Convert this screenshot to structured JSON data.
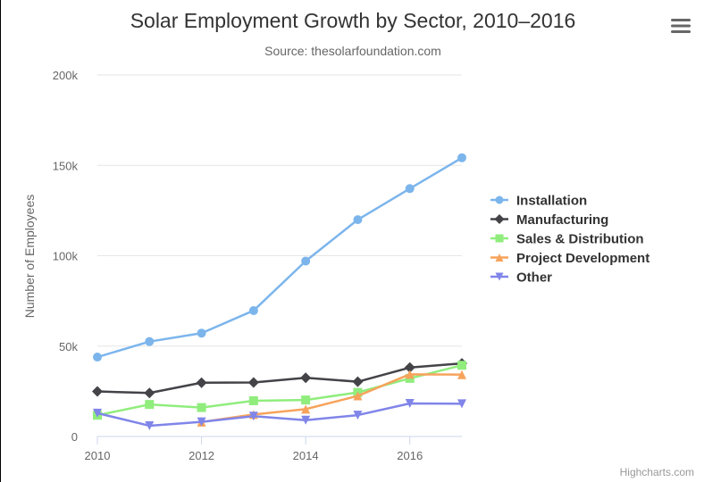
{
  "colors": {
    "background": "#ffffff",
    "grid": "#e6e6e6",
    "axis": "#ccd6eb",
    "text": "#333333",
    "muted": "#666666",
    "credit": "#999999"
  },
  "menu": {
    "icon": "hamburger-menu-icon"
  },
  "credits": {
    "text": "Highcharts.com"
  },
  "chart_data": {
    "type": "line",
    "title": "Solar Employment Growth by Sector, 2010–2016",
    "subtitle": "Source: thesolarfoundation.com",
    "xlabel": "",
    "ylabel": "Number of Employees",
    "x": [
      2010,
      2011,
      2012,
      2013,
      2014,
      2015,
      2016,
      2017
    ],
    "xlim": [
      2010,
      2017
    ],
    "ylim": [
      0,
      200000
    ],
    "xticks": [
      2010,
      2012,
      2014,
      2016
    ],
    "xtick_labels": [
      "2010",
      "2012",
      "2014",
      "2016"
    ],
    "yticks": [
      0,
      50000,
      100000,
      150000,
      200000
    ],
    "ytick_labels": [
      "0",
      "50k",
      "100k",
      "150k",
      "200k"
    ],
    "grid": true,
    "legend": {
      "placement": "right"
    },
    "series": [
      {
        "name": "Installation",
        "color": "#7cb5ec",
        "marker": "circle",
        "values": [
          43934,
          52503,
          57177,
          69658,
          97031,
          119931,
          137133,
          154175
        ]
      },
      {
        "name": "Manufacturing",
        "color": "#434348",
        "marker": "diamond",
        "values": [
          24916,
          24064,
          29742,
          29851,
          32490,
          30282,
          38121,
          40434
        ]
      },
      {
        "name": "Sales & Distribution",
        "color": "#90ed7d",
        "marker": "square",
        "values": [
          11744,
          17722,
          16005,
          19771,
          20185,
          24377,
          32147,
          39387
        ]
      },
      {
        "name": "Project Development",
        "color": "#f7a35c",
        "marker": "triangle",
        "values": [
          null,
          null,
          7988,
          12169,
          15112,
          22452,
          34400,
          34227
        ]
      },
      {
        "name": "Other",
        "color": "#8085e9",
        "marker": "triangle-down",
        "values": [
          12908,
          5948,
          8105,
          11248,
          8989,
          11816,
          18274,
          18111
        ]
      }
    ]
  }
}
